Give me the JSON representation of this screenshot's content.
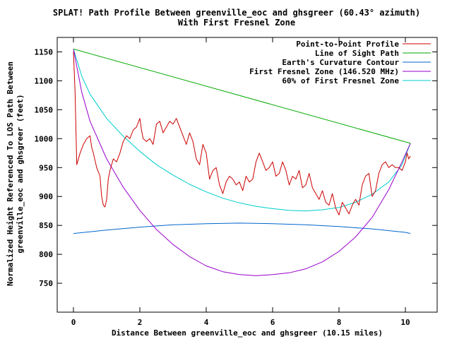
{
  "chart_data": {
    "type": "line",
    "title": "SPLAT! Path Profile Between greenville_eoc and ghsgreer (60.43° azimuth)",
    "subtitle": "With First Fresnel Zone",
    "xlabel": "Distance Between greenville_eoc and ghsgreer (10.15 miles)",
    "ylabel_line1": "Normalized Height Referenced To LOS Path Between",
    "ylabel_line2": "greenville_eoc and ghsgreer (feet)",
    "xlim": [
      -0.5,
      11
    ],
    "ylim": [
      700,
      1175
    ],
    "x_ticks": [
      "0",
      "2",
      "4",
      "6",
      "8",
      "10"
    ],
    "y_ticks": [
      "750",
      "800",
      "850",
      "900",
      "950",
      "1000",
      "1050",
      "1100",
      "1150"
    ],
    "grid": false,
    "legend_position": "top-right",
    "series": [
      {
        "name": "Point-to-Point Profile",
        "color": "#cc0000",
        "x": [
          0,
          0.05,
          0.1,
          0.2,
          0.3,
          0.4,
          0.5,
          0.55,
          0.6,
          0.7,
          0.8,
          0.85,
          0.9,
          0.95,
          1.0,
          1.05,
          1.1,
          1.2,
          1.3,
          1.4,
          1.5,
          1.6,
          1.7,
          1.8,
          1.9,
          2.0,
          2.05,
          2.1,
          2.2,
          2.3,
          2.4,
          2.5,
          2.6,
          2.7,
          2.8,
          2.9,
          3.0,
          3.1,
          3.2,
          3.3,
          3.4,
          3.5,
          3.6,
          3.7,
          3.8,
          3.9,
          4.0,
          4.1,
          4.2,
          4.3,
          4.4,
          4.5,
          4.6,
          4.7,
          4.8,
          4.9,
          5.0,
          5.1,
          5.2,
          5.3,
          5.4,
          5.5,
          5.6,
          5.7,
          5.8,
          5.9,
          6.0,
          6.1,
          6.2,
          6.3,
          6.4,
          6.5,
          6.6,
          6.7,
          6.8,
          6.9,
          7.0,
          7.1,
          7.2,
          7.3,
          7.4,
          7.5,
          7.6,
          7.7,
          7.8,
          7.9,
          8.0,
          8.1,
          8.2,
          8.3,
          8.4,
          8.5,
          8.6,
          8.7,
          8.8,
          8.9,
          9.0,
          9.1,
          9.2,
          9.3,
          9.4,
          9.5,
          9.6,
          9.7,
          9.8,
          9.9,
          10.0,
          10.05,
          10.1,
          10.15
        ],
        "values": [
          1150,
          1080,
          955,
          975,
          990,
          1000,
          1005,
          985,
          975,
          950,
          935,
          900,
          885,
          882,
          895,
          930,
          945,
          965,
          960,
          975,
          995,
          1005,
          1000,
          1015,
          1020,
          1035,
          1015,
          1000,
          995,
          1000,
          990,
          1025,
          1030,
          1010,
          1020,
          1030,
          1025,
          1035,
          1020,
          1005,
          990,
          1010,
          995,
          965,
          955,
          990,
          975,
          930,
          945,
          950,
          920,
          905,
          925,
          935,
          930,
          920,
          925,
          910,
          935,
          925,
          930,
          960,
          975,
          960,
          945,
          950,
          960,
          935,
          940,
          960,
          945,
          920,
          935,
          930,
          945,
          915,
          920,
          940,
          915,
          905,
          895,
          910,
          890,
          885,
          905,
          880,
          868,
          890,
          880,
          870,
          885,
          895,
          885,
          920,
          935,
          940,
          900,
          910,
          940,
          955,
          960,
          950,
          955,
          950,
          950,
          945,
          960,
          975,
          965,
          970
        ]
      },
      {
        "name": "Line of Sight Path",
        "color": "#00aa00",
        "x": [
          0,
          10.15
        ],
        "values": [
          1155,
          992
        ]
      },
      {
        "name": "Earth's Curvature Contour",
        "color": "#0066cc",
        "x": [
          0,
          1,
          2,
          3,
          4,
          5,
          6,
          7,
          8,
          9,
          10,
          10.15
        ],
        "values": [
          836,
          842,
          847,
          851,
          853,
          854,
          853,
          851,
          848,
          844,
          838,
          836
        ]
      },
      {
        "name": "First Fresnel Zone (146.520 MHz)",
        "color": "#9900cc",
        "x": [
          0,
          0.25,
          0.5,
          1,
          1.5,
          2,
          2.5,
          3,
          3.5,
          4,
          4.5,
          5,
          5.5,
          6,
          6.5,
          7,
          7.5,
          8,
          8.5,
          9,
          9.5,
          9.9,
          10.15
        ],
        "values": [
          1155,
          1080,
          1030,
          965,
          916,
          876,
          843,
          817,
          796,
          780,
          770,
          765,
          763,
          765,
          768,
          775,
          787,
          805,
          830,
          864,
          912,
          960,
          992
        ]
      },
      {
        "name": "60% of First Fresnel Zone",
        "color": "#00cccc",
        "x": [
          0,
          0.25,
          0.5,
          1,
          1.5,
          2,
          2.5,
          3,
          3.5,
          4,
          4.5,
          5,
          5.5,
          6,
          6.5,
          7,
          7.5,
          8,
          8.5,
          9,
          9.5,
          9.9,
          10.15
        ],
        "values": [
          1155,
          1108,
          1077,
          1035,
          1004,
          978,
          955,
          937,
          921,
          908,
          897,
          889,
          883,
          879,
          876,
          875,
          877,
          881,
          890,
          904,
          925,
          955,
          992
        ]
      }
    ]
  }
}
